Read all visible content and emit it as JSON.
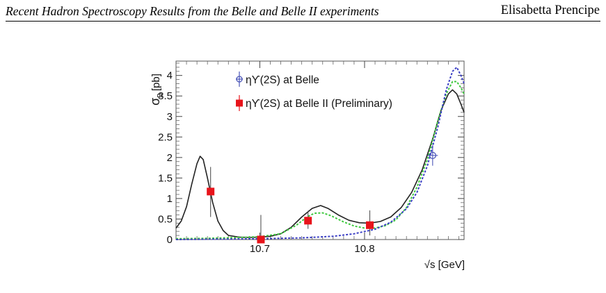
{
  "header": {
    "title": "Recent Hadron Spectroscopy Results from the Belle and Belle II experiments",
    "author": "Elisabetta Prencipe"
  },
  "chart_data": {
    "type": "scatter",
    "ylabel_symbol": "σ",
    "ylabel_sub": "B",
    "ylabel_unit": "[pb]",
    "xlabel": "√s [GeV]",
    "xlim": [
      10.62,
      10.895
    ],
    "ylim": [
      0,
      4.35
    ],
    "x_ticks": [
      {
        "value": 10.7,
        "label": "10.7"
      },
      {
        "value": 10.8,
        "label": "10.8"
      }
    ],
    "y_ticks": [
      {
        "value": 0,
        "label": "0"
      },
      {
        "value": 0.5,
        "label": "0.5"
      },
      {
        "value": 1,
        "label": "1"
      },
      {
        "value": 1.5,
        "label": "1.5"
      },
      {
        "value": 2,
        "label": "2"
      },
      {
        "value": 2.5,
        "label": "2.5"
      },
      {
        "value": 3,
        "label": "3"
      },
      {
        "value": 3.5,
        "label": "3.5"
      },
      {
        "value": 4,
        "label": "4"
      }
    ],
    "legend_placement": "top-left",
    "series": [
      {
        "name": "ηϒ(2S) at Belle",
        "marker": "open-circle-cross",
        "color": "#4a55b8",
        "points": [
          {
            "x": 10.865,
            "y": 2.05,
            "yerr": 0.25,
            "xerr": 0.005
          }
        ]
      },
      {
        "name": "ηϒ(2S) at Belle II (Preliminary)",
        "marker": "filled-square",
        "color": "#e8141b",
        "points": [
          {
            "x": 10.653,
            "y": 1.17,
            "yerr_up": 0.6,
            "yerr_down": 0.62
          },
          {
            "x": 10.701,
            "y": 0.0,
            "yerr_up": 0.6,
            "yerr_down": 0.0
          },
          {
            "x": 10.746,
            "y": 0.46,
            "yerr_up": 0.24,
            "yerr_down": 0.2
          },
          {
            "x": 10.805,
            "y": 0.35,
            "yerr_up": 0.36,
            "yerr_down": 0.25
          }
        ]
      }
    ],
    "curves": [
      {
        "style": "solid",
        "color": "#222222",
        "points": [
          [
            10.62,
            0.28
          ],
          [
            10.625,
            0.45
          ],
          [
            10.63,
            0.8
          ],
          [
            10.635,
            1.35
          ],
          [
            10.64,
            1.85
          ],
          [
            10.643,
            2.03
          ],
          [
            10.646,
            1.95
          ],
          [
            10.65,
            1.5
          ],
          [
            10.655,
            0.9
          ],
          [
            10.66,
            0.45
          ],
          [
            10.665,
            0.22
          ],
          [
            10.67,
            0.1
          ],
          [
            10.68,
            0.06
          ],
          [
            10.69,
            0.05
          ],
          [
            10.7,
            0.06
          ],
          [
            10.71,
            0.08
          ],
          [
            10.72,
            0.14
          ],
          [
            10.73,
            0.3
          ],
          [
            10.74,
            0.55
          ],
          [
            10.75,
            0.76
          ],
          [
            10.758,
            0.83
          ],
          [
            10.765,
            0.76
          ],
          [
            10.775,
            0.6
          ],
          [
            10.785,
            0.47
          ],
          [
            10.795,
            0.41
          ],
          [
            10.805,
            0.4
          ],
          [
            10.815,
            0.44
          ],
          [
            10.825,
            0.55
          ],
          [
            10.835,
            0.78
          ],
          [
            10.845,
            1.15
          ],
          [
            10.855,
            1.7
          ],
          [
            10.865,
            2.45
          ],
          [
            10.873,
            3.15
          ],
          [
            10.88,
            3.55
          ],
          [
            10.884,
            3.65
          ],
          [
            10.888,
            3.55
          ],
          [
            10.892,
            3.3
          ],
          [
            10.895,
            3.1
          ]
        ]
      },
      {
        "style": "dotted",
        "color": "#3ec93e",
        "points": [
          [
            10.62,
            0.02
          ],
          [
            10.65,
            0.03
          ],
          [
            10.68,
            0.05
          ],
          [
            10.7,
            0.07
          ],
          [
            10.72,
            0.14
          ],
          [
            10.735,
            0.35
          ],
          [
            10.745,
            0.55
          ],
          [
            10.752,
            0.64
          ],
          [
            10.76,
            0.65
          ],
          [
            10.768,
            0.58
          ],
          [
            10.78,
            0.43
          ],
          [
            10.79,
            0.33
          ],
          [
            10.8,
            0.28
          ],
          [
            10.81,
            0.28
          ],
          [
            10.82,
            0.34
          ],
          [
            10.83,
            0.48
          ],
          [
            10.84,
            0.78
          ],
          [
            10.85,
            1.28
          ],
          [
            10.86,
            1.95
          ],
          [
            10.87,
            2.9
          ],
          [
            10.878,
            3.55
          ],
          [
            10.884,
            3.85
          ],
          [
            10.888,
            3.85
          ],
          [
            10.892,
            3.7
          ],
          [
            10.895,
            3.55
          ]
        ]
      },
      {
        "style": "dotted",
        "color": "#3b3fc4",
        "points": [
          [
            10.62,
            0.0
          ],
          [
            10.66,
            0.01
          ],
          [
            10.7,
            0.02
          ],
          [
            10.74,
            0.04
          ],
          [
            10.77,
            0.08
          ],
          [
            10.79,
            0.14
          ],
          [
            10.81,
            0.25
          ],
          [
            10.825,
            0.42
          ],
          [
            10.84,
            0.75
          ],
          [
            10.85,
            1.15
          ],
          [
            10.86,
            1.8
          ],
          [
            10.87,
            2.75
          ],
          [
            10.878,
            3.65
          ],
          [
            10.884,
            4.1
          ],
          [
            10.888,
            4.2
          ],
          [
            10.892,
            4.0
          ],
          [
            10.895,
            3.8
          ]
        ]
      }
    ]
  }
}
